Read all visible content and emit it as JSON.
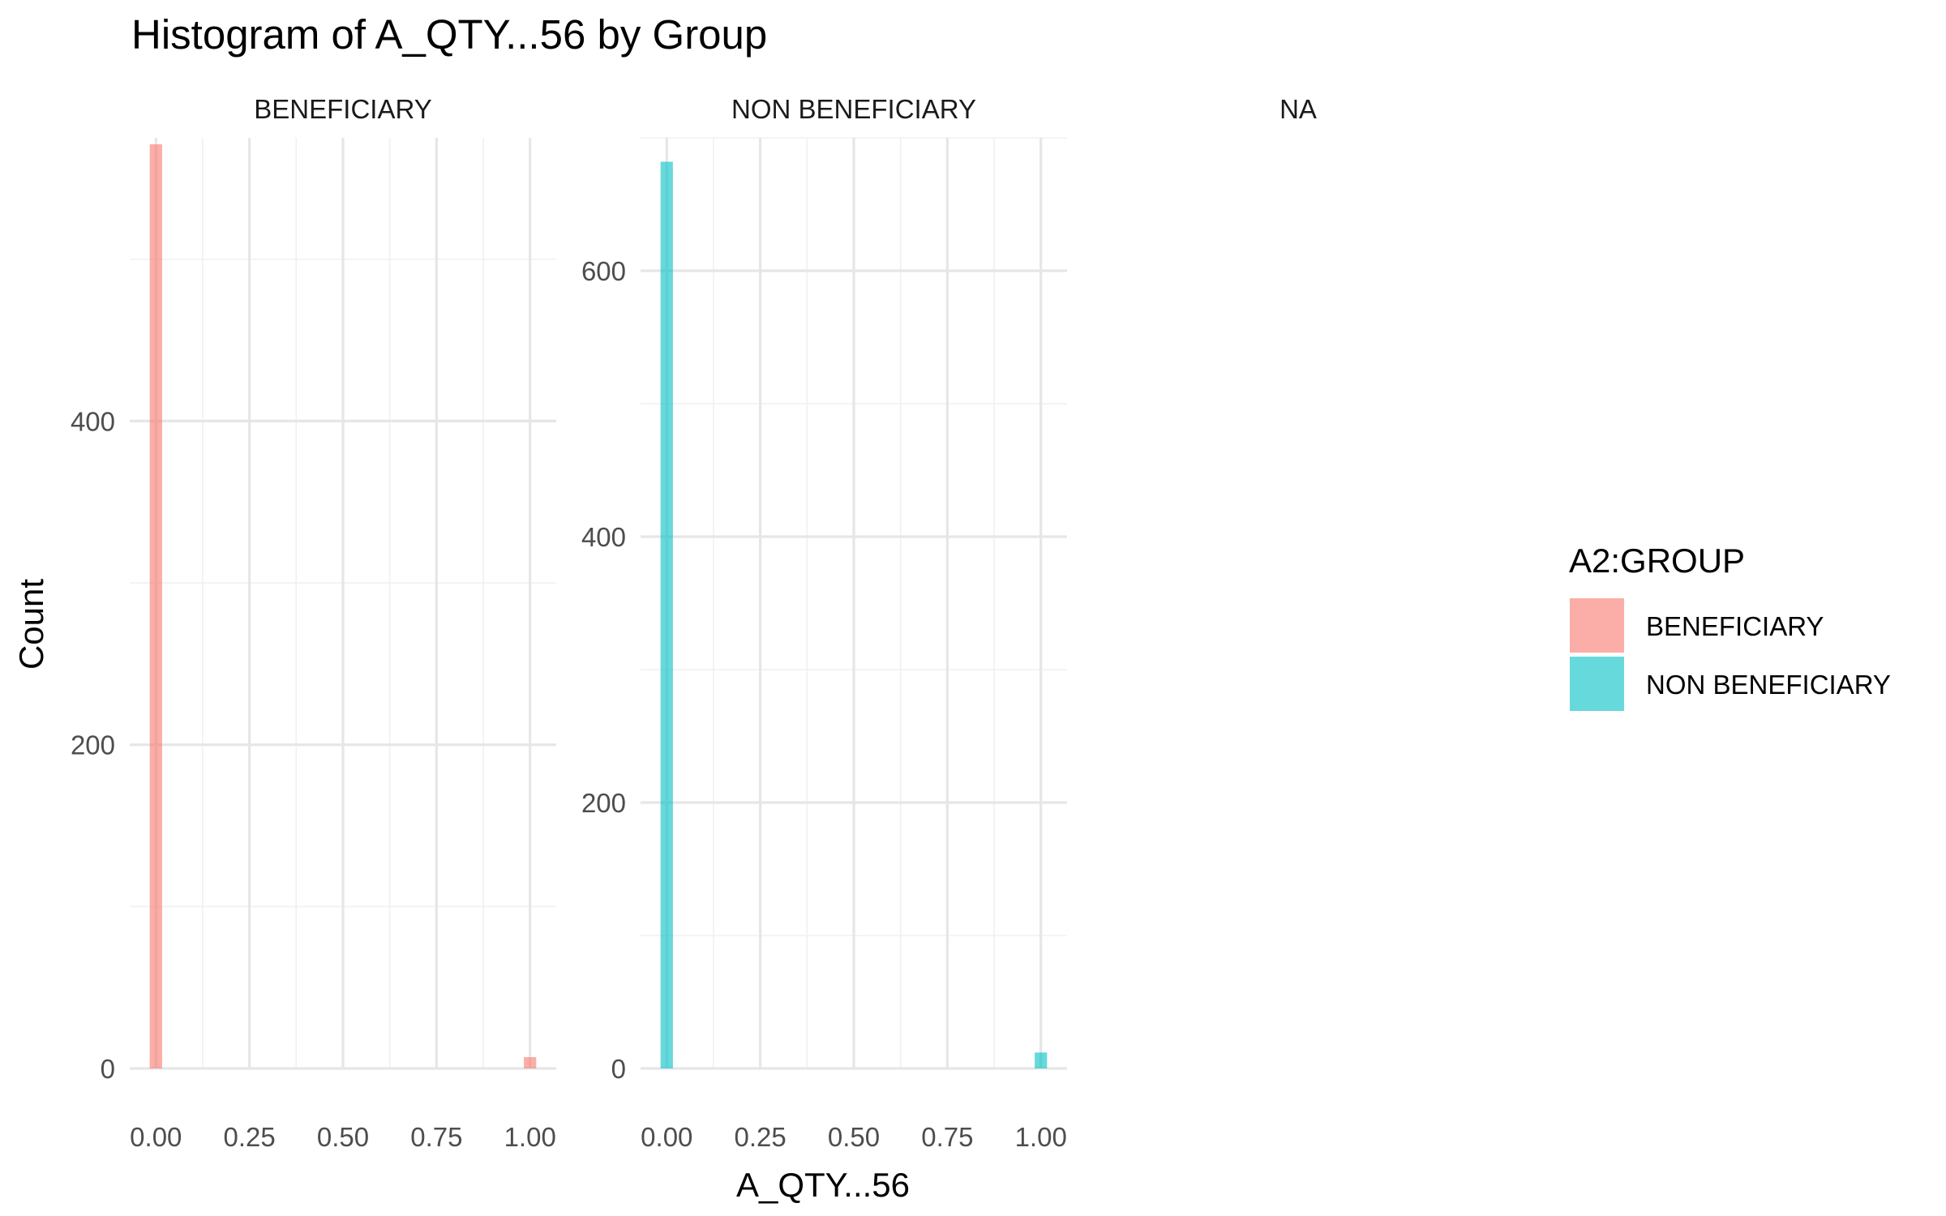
{
  "chart_data": {
    "type": "bar",
    "title": "Histogram of A_QTY...56 by Group",
    "xlabel": "A_QTY...56",
    "ylabel": "Count",
    "facets": [
      {
        "label": "BENEFICIARY",
        "series": "BENEFICIARY",
        "xlim": [
          -0.07,
          1.07
        ],
        "ylim": [
          0,
          575
        ],
        "x_ticks": [
          "0.00",
          "0.25",
          "0.50",
          "0.75",
          "1.00"
        ],
        "y_ticks": [
          "0",
          "200",
          "400"
        ],
        "bins": [
          {
            "x": 0.0,
            "count": 571
          },
          {
            "x": 1.0,
            "count": 7
          }
        ]
      },
      {
        "label": "NON BENEFICIARY",
        "series": "NON BENEFICIARY",
        "xlim": [
          -0.07,
          1.07
        ],
        "ylim": [
          0,
          700
        ],
        "x_ticks": [
          "0.00",
          "0.25",
          "0.50",
          "0.75",
          "1.00"
        ],
        "y_ticks": [
          "0",
          "200",
          "400",
          "600"
        ],
        "bins": [
          {
            "x": 0.0,
            "count": 682
          },
          {
            "x": 1.0,
            "count": 12
          }
        ]
      },
      {
        "label": "NA",
        "series": null,
        "bins": []
      }
    ],
    "legend": {
      "title": "A2:GROUP",
      "position": "right",
      "items": [
        {
          "label": "BENEFICIARY",
          "color": "#F8766D"
        },
        {
          "label": "NON BENEFICIARY",
          "color": "#00BFC4"
        }
      ]
    },
    "bin_width": 0.033,
    "bar_opacity": 0.6,
    "grid": true
  }
}
